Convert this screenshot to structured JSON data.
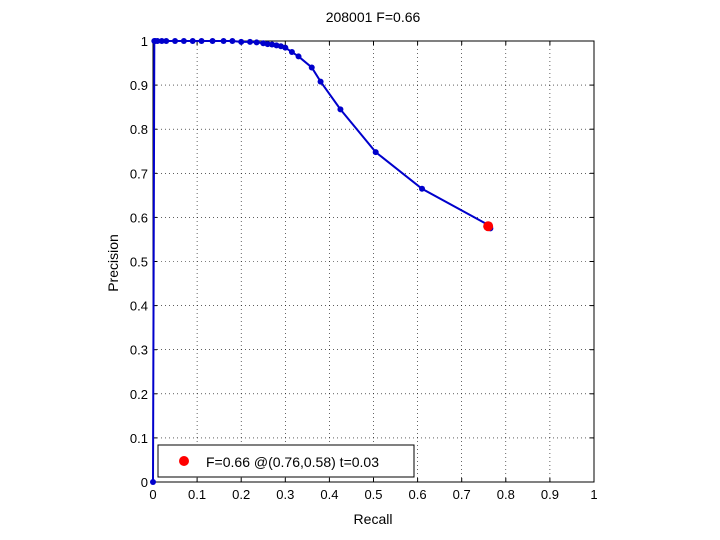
{
  "chart_data": {
    "type": "line",
    "title": "208001 F=0.66",
    "xlabel": "Recall",
    "ylabel": "Precision",
    "xlim": [
      0,
      1
    ],
    "ylim": [
      0,
      1
    ],
    "x_ticks": [
      0,
      0.1,
      0.2,
      0.3,
      0.4,
      0.5,
      0.6,
      0.7,
      0.8,
      0.9,
      1
    ],
    "y_ticks": [
      0,
      0.1,
      0.2,
      0.3,
      0.4,
      0.5,
      0.6,
      0.7,
      0.8,
      0.9,
      1
    ],
    "x_tick_labels": [
      "0",
      "0.1",
      "0.2",
      "0.3",
      "0.4",
      "0.5",
      "0.6",
      "0.7",
      "0.8",
      "0.9",
      "1"
    ],
    "y_tick_labels": [
      "0",
      "0.1",
      "0.2",
      "0.3",
      "0.4",
      "0.5",
      "0.6",
      "0.7",
      "0.8",
      "0.9",
      "1"
    ],
    "grid": true,
    "legend_position": "bottom-left",
    "colors": {
      "curve": "#0000cc",
      "best_point": "#ff0000"
    },
    "series": [
      {
        "recall": [
          0,
          0.003,
          0.005,
          0.01,
          0.02,
          0.03,
          0.05,
          0.07,
          0.09,
          0.11,
          0.135,
          0.16,
          0.18,
          0.2,
          0.22,
          0.235,
          0.25,
          0.26,
          0.27,
          0.28,
          0.29,
          0.3,
          0.315,
          0.33,
          0.36,
          0.38,
          0.425,
          0.505,
          0.61,
          0.76,
          0.765
        ],
        "precision": [
          0,
          1,
          1,
          1,
          1,
          1,
          1,
          1,
          1,
          1,
          1,
          1,
          1,
          0.998,
          0.998,
          0.997,
          0.995,
          0.993,
          0.992,
          0.99,
          0.988,
          0.985,
          0.975,
          0.965,
          0.94,
          0.908,
          0.845,
          0.748,
          0.665,
          0.583,
          0.575
        ]
      }
    ],
    "best_point": {
      "recall": 0.76,
      "precision": 0.58
    },
    "legend_entries": [
      "F=0.66 @(0.76,0.58) t=0.03"
    ]
  }
}
